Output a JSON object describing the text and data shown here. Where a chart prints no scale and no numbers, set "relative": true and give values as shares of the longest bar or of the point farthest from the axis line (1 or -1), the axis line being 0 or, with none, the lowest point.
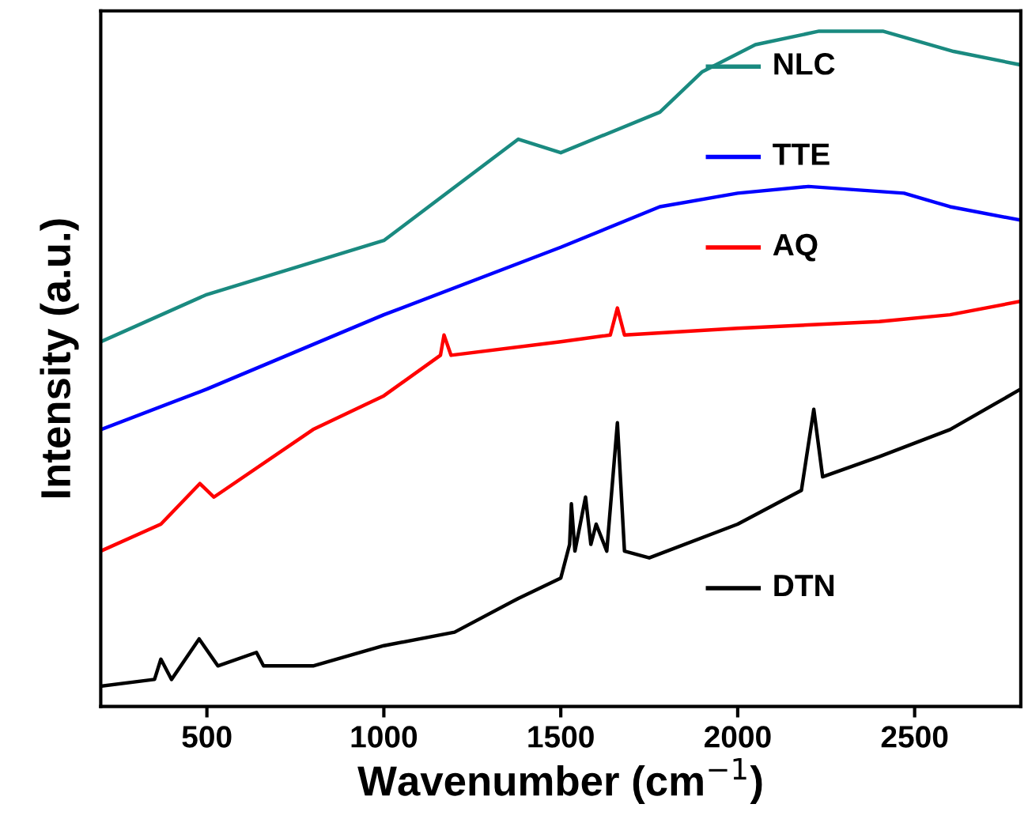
{
  "chart_data": {
    "type": "line",
    "relative": true,
    "xlabel": "Wavenumber (cm$^{−1}$)",
    "ylabel": "Intensity (a.u.)",
    "xlim": [
      200,
      2800
    ],
    "xticks": [
      500,
      1000,
      1500,
      2000,
      2500
    ],
    "tick_labels": "x",
    "grid": false,
    "legend": "right",
    "series": [
      {
        "name": "NLC",
        "color": "#1a8a80",
        "x": [
          200,
          500,
          1000,
          1380,
          1500,
          1780,
          1900,
          2050,
          2230,
          2410,
          2610,
          2800
        ],
        "values": [
          0.54,
          0.61,
          0.69,
          0.84,
          0.82,
          0.88,
          0.94,
          0.98,
          1.0,
          1.0,
          0.97,
          0.95
        ]
      },
      {
        "name": "TTE",
        "color": "#0000ff",
        "x": [
          200,
          500,
          1000,
          1500,
          1780,
          2000,
          2200,
          2470,
          2600,
          2800
        ],
        "values": [
          0.41,
          0.47,
          0.58,
          0.68,
          0.74,
          0.76,
          0.77,
          0.76,
          0.74,
          0.72
        ]
      },
      {
        "name": "AQ",
        "color": "#ff0000",
        "x": [
          200,
          370,
          480,
          520,
          800,
          1000,
          1160,
          1170,
          1190,
          1500,
          1640,
          1660,
          1680,
          2000,
          2400,
          2600,
          2800
        ],
        "values": [
          0.23,
          0.27,
          0.33,
          0.31,
          0.41,
          0.46,
          0.52,
          0.55,
          0.52,
          0.54,
          0.55,
          0.59,
          0.55,
          0.56,
          0.57,
          0.58,
          0.6
        ]
      },
      {
        "name": "DTN",
        "color": "#000000",
        "x": [
          200,
          352,
          370,
          400,
          478,
          531,
          640,
          660,
          800,
          1000,
          1200,
          1380,
          1500,
          1525,
          1530,
          1540,
          1570,
          1585,
          1600,
          1630,
          1660,
          1680,
          1750,
          2000,
          2180,
          2215,
          2240,
          2400,
          2600,
          2800
        ],
        "values": [
          0.03,
          0.04,
          0.07,
          0.04,
          0.1,
          0.06,
          0.08,
          0.06,
          0.06,
          0.09,
          0.11,
          0.16,
          0.19,
          0.24,
          0.3,
          0.23,
          0.31,
          0.24,
          0.27,
          0.23,
          0.42,
          0.23,
          0.22,
          0.27,
          0.32,
          0.44,
          0.34,
          0.37,
          0.41,
          0.47
        ]
      }
    ]
  }
}
